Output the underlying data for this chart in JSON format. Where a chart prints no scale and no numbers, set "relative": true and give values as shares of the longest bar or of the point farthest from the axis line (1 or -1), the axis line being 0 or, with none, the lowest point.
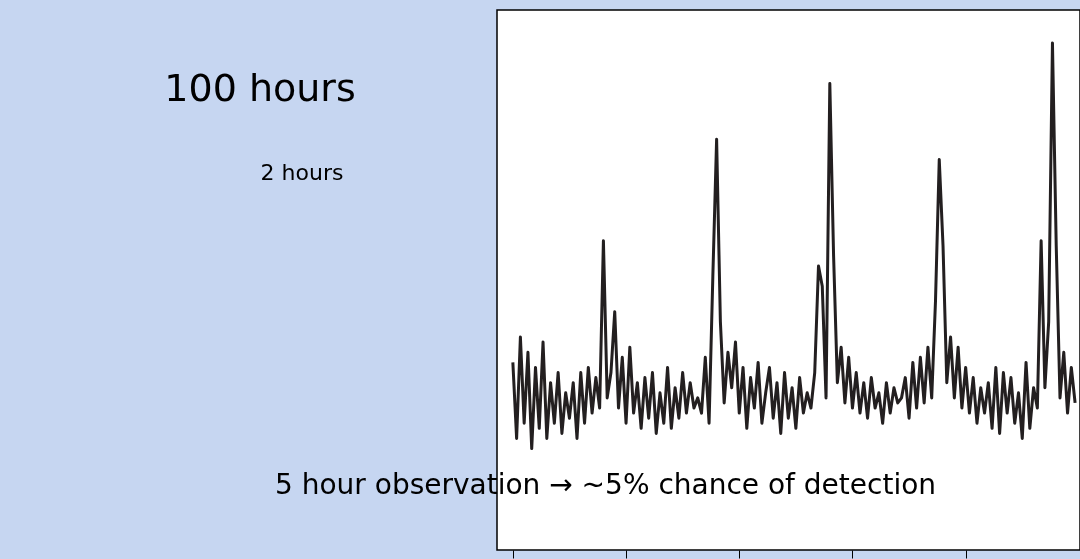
{
  "chart_data": {
    "type": "line",
    "relative": true,
    "line_style": "solid",
    "marker": "none",
    "grid": false,
    "categories": [
      null,
      null,
      null,
      null,
      null,
      null,
      null,
      null,
      null,
      null,
      null,
      null,
      null,
      null,
      null,
      null,
      null,
      null,
      null,
      null,
      null,
      null,
      null,
      null,
      null,
      null,
      null,
      null,
      null,
      null,
      null,
      null,
      null,
      null,
      null,
      null,
      null,
      null,
      null,
      null,
      null,
      null,
      null,
      null,
      null,
      null,
      null,
      null,
      null,
      null,
      null,
      null,
      null,
      null,
      null,
      null,
      null,
      null,
      null,
      null,
      null,
      null,
      null,
      null,
      null,
      null,
      null,
      null,
      null,
      null,
      null,
      null,
      null,
      null,
      null,
      null,
      null,
      null,
      null,
      null,
      null,
      null,
      null,
      null,
      null,
      null,
      null,
      null,
      null,
      null,
      null,
      null,
      null,
      null,
      null,
      null,
      null,
      null,
      null,
      null,
      null,
      null,
      null,
      null,
      null,
      null,
      null,
      null,
      null,
      null,
      null,
      null,
      null,
      null,
      null,
      null,
      null,
      null,
      null,
      null,
      null,
      null,
      null,
      null,
      null,
      null,
      null,
      null,
      null,
      null,
      null,
      null,
      null,
      null,
      null,
      null,
      null,
      null,
      null,
      null,
      null,
      null,
      null,
      null,
      null,
      null,
      null,
      null,
      null,
      null
    ],
    "series": [
      {
        "color": "#231f20",
        "values": [
          0.37,
          0.22,
          0.42,
          0.25,
          0.39,
          0.2,
          0.36,
          0.24,
          0.41,
          0.22,
          0.33,
          0.25,
          0.35,
          0.23,
          0.31,
          0.26,
          0.33,
          0.22,
          0.35,
          0.25,
          0.36,
          0.27,
          0.34,
          0.28,
          0.61,
          0.3,
          0.35,
          0.47,
          0.28,
          0.38,
          0.25,
          0.4,
          0.27,
          0.33,
          0.24,
          0.34,
          0.26,
          0.35,
          0.23,
          0.31,
          0.25,
          0.36,
          0.24,
          0.32,
          0.26,
          0.35,
          0.27,
          0.33,
          0.28,
          0.3,
          0.27,
          0.38,
          0.25,
          0.54,
          0.81,
          0.45,
          0.29,
          0.39,
          0.32,
          0.41,
          0.27,
          0.36,
          0.24,
          0.34,
          0.28,
          0.37,
          0.25,
          0.31,
          0.36,
          0.26,
          0.33,
          0.23,
          0.35,
          0.26,
          0.32,
          0.24,
          0.34,
          0.27,
          0.31,
          0.28,
          0.35,
          0.56,
          0.52,
          0.3,
          0.92,
          0.58,
          0.33,
          0.4,
          0.29,
          0.38,
          0.28,
          0.35,
          0.27,
          0.33,
          0.26,
          0.34,
          0.28,
          0.31,
          0.25,
          0.33,
          0.27,
          0.32,
          0.29,
          0.3,
          0.34,
          0.26,
          0.37,
          0.28,
          0.38,
          0.29,
          0.4,
          0.3,
          0.49,
          0.77,
          0.6,
          0.33,
          0.42,
          0.3,
          0.4,
          0.28,
          0.36,
          0.27,
          0.34,
          0.25,
          0.32,
          0.27,
          0.33,
          0.24,
          0.36,
          0.23,
          0.35,
          0.27,
          0.34,
          0.25,
          0.31,
          0.22,
          0.37,
          0.24,
          0.32,
          0.28,
          0.61,
          0.32,
          0.45,
          1.0,
          0.6,
          0.3,
          0.39,
          0.27,
          0.36,
          0.29
        ]
      }
    ],
    "annotations": [
      "100 hours",
      "2 hours",
      "5 hour observation → ~5% chance of detection"
    ]
  }
}
